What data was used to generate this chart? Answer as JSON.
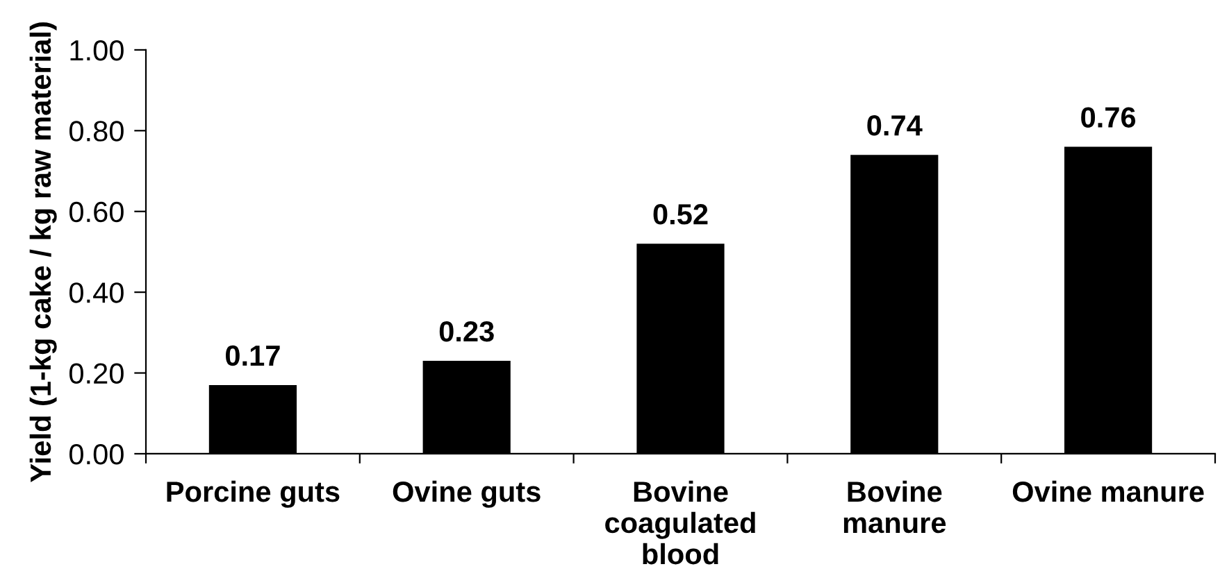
{
  "chart_data": {
    "type": "bar",
    "ylabel": "Yield (1-kg cake / kg raw material)",
    "categories": [
      "Porcine guts",
      "Ovine guts",
      "Bovine\ncoagulated\nblood",
      "Bovine\nmanure",
      "Ovine manure"
    ],
    "values": [
      0.17,
      0.23,
      0.52,
      0.74,
      0.76
    ],
    "color": "#000000",
    "ylim": [
      0,
      1
    ],
    "yticks": [
      {
        "value": 0,
        "label": "0.00"
      },
      {
        "value": 0.2,
        "label": "0.20"
      },
      {
        "value": 0.4,
        "label": "0.40"
      },
      {
        "value": 0.6,
        "label": "0.60"
      },
      {
        "value": 0.8,
        "label": "0.80"
      },
      {
        "value": 1,
        "label": "1.00"
      }
    ],
    "data_labels": true
  }
}
